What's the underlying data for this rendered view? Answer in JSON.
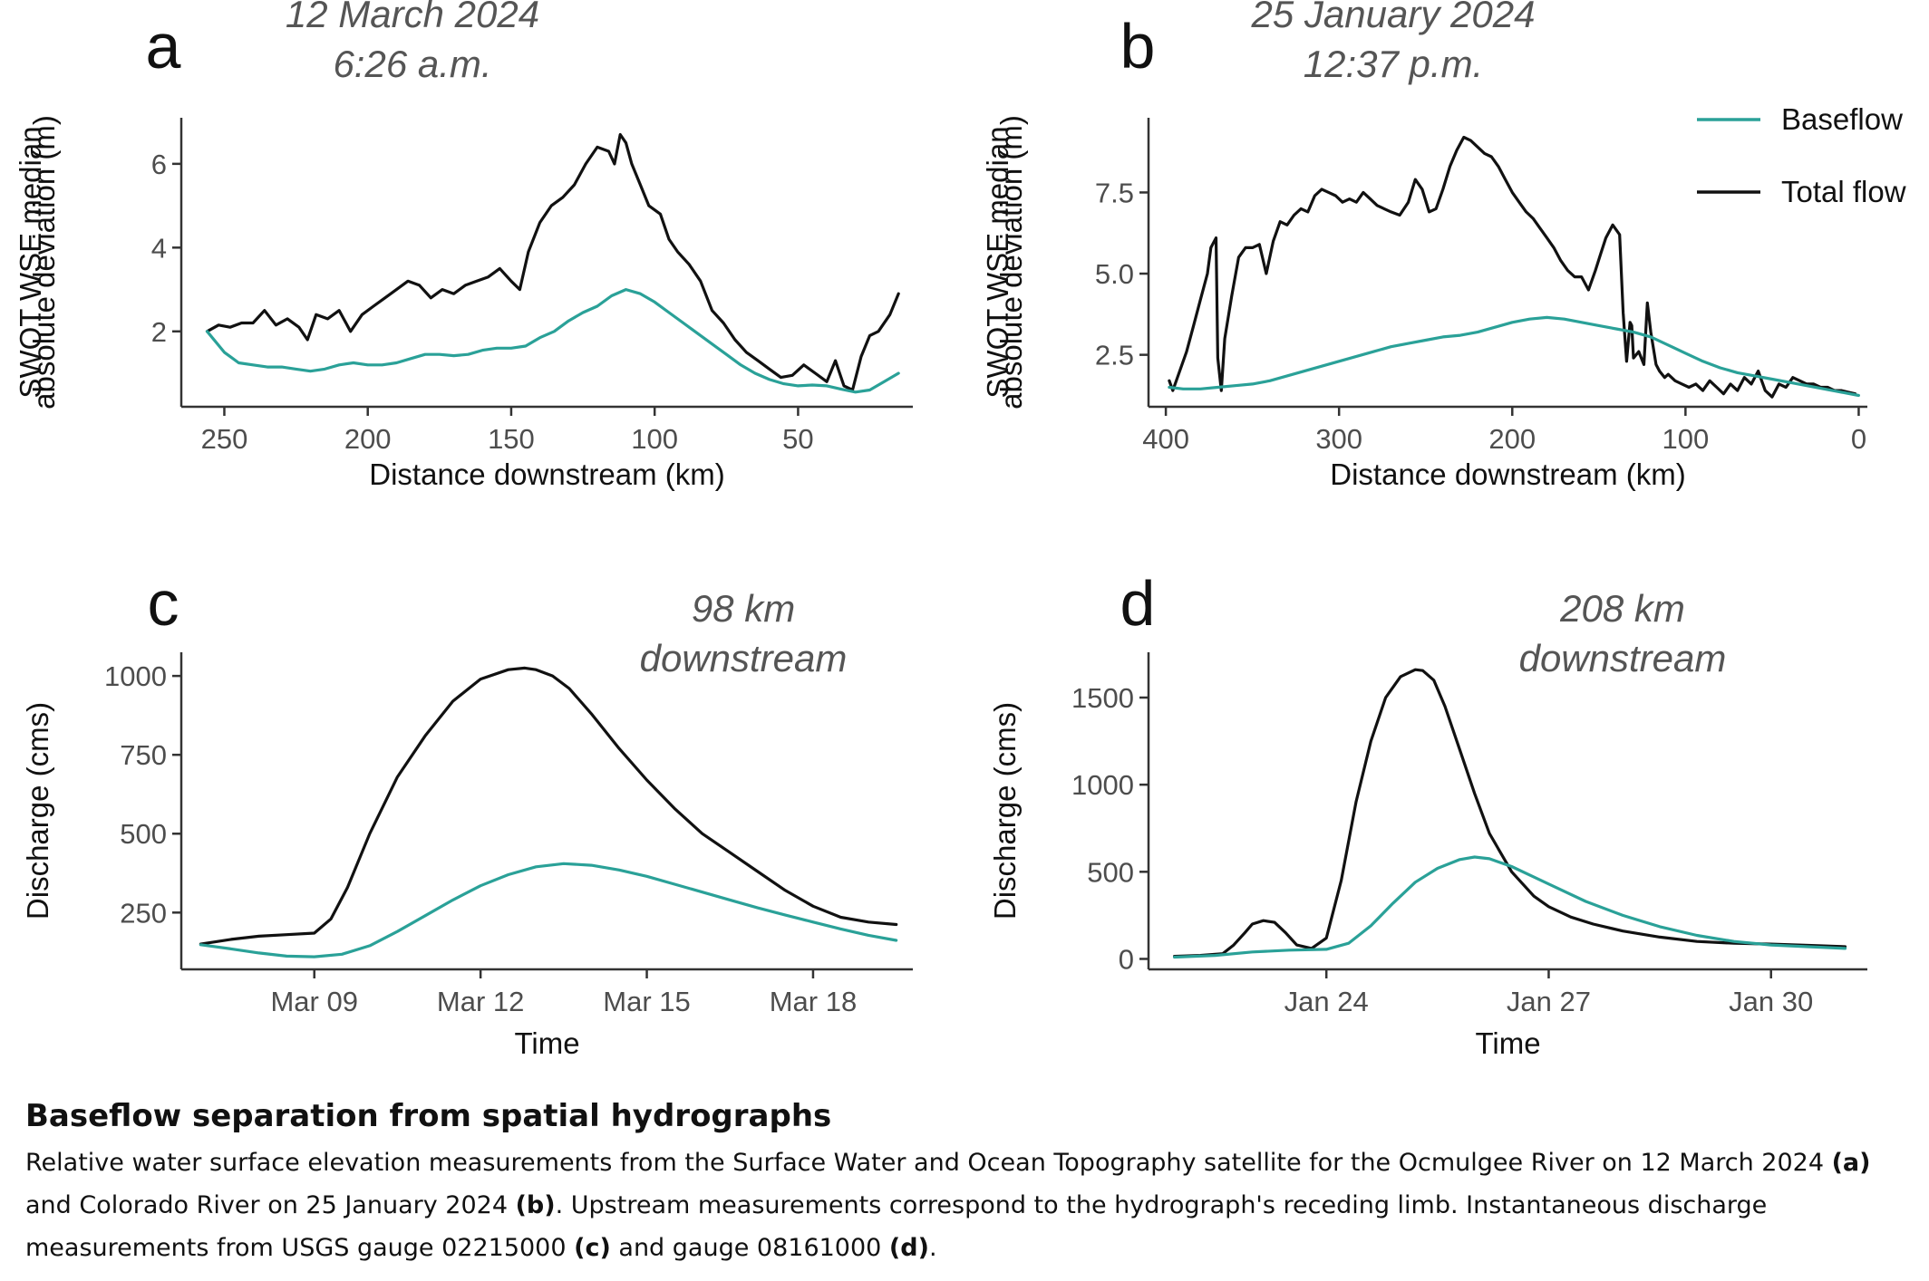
{
  "caption": {
    "title": "Baseflow separation from spatial hydrographs",
    "text_1": "Relative water surface elevation measurements from the Surface Water and Ocean Topography satellite for the Ocmulgee River on 12 March 2024 ",
    "ref_a": "(a)",
    "text_2": " and Colorado River on 25 January 2024 ",
    "ref_b": "(b)",
    "text_3": ". Upstream measurements correspond to the hydrograph's receding limb. Instantaneous discharge measurements from USGS gauge 02215000 ",
    "ref_c": "(c)",
    "text_4": " and gauge 08161000 ",
    "ref_d": "(d)",
    "text_5": "."
  },
  "colors": {
    "baseflow": "#2aa198",
    "total": "#111111",
    "axis": "#333333",
    "tick_text": "#4d4d4d",
    "annotation": "#555555"
  },
  "legend": {
    "items": [
      {
        "label": "Baseflow",
        "color": "#2aa198"
      },
      {
        "label": "Total flow",
        "color": "#111111"
      }
    ],
    "placement": "top-right of panel b"
  },
  "chart_data": [
    {
      "panel": "a",
      "type": "line",
      "annotation": [
        "12 March 2024",
        "6:26 a.m."
      ],
      "xlabel": "Distance downstream (km)",
      "ylabel": [
        "SWOT WSE median",
        "absolute deviation (m)"
      ],
      "x_reversed": true,
      "xlim": [
        265,
        10
      ],
      "ylim": [
        0.2,
        7.1
      ],
      "xticks": [
        250,
        200,
        150,
        100,
        50
      ],
      "xtick_labels": [
        "250",
        "200",
        "150",
        "100",
        "50"
      ],
      "yticks": [
        2,
        4,
        6
      ],
      "ytick_labels": [
        "2",
        "4",
        "6"
      ],
      "series": [
        {
          "name": "Total flow",
          "x": [
            256,
            252,
            248,
            244,
            240,
            236,
            232,
            228,
            224,
            221,
            218,
            214,
            210,
            206,
            202,
            198,
            194,
            190,
            186,
            182,
            178,
            174,
            170,
            166,
            162,
            158,
            154,
            150,
            147,
            144,
            140,
            136,
            132,
            128,
            124,
            120,
            116,
            114,
            112,
            110,
            108,
            105,
            102,
            98,
            95,
            92,
            88,
            84,
            80,
            76,
            72,
            68,
            64,
            60,
            56,
            52,
            48,
            44,
            40,
            37,
            34,
            31,
            28,
            25,
            22,
            18,
            15
          ],
          "y": [
            2.0,
            2.15,
            2.1,
            2.2,
            2.2,
            2.5,
            2.15,
            2.3,
            2.1,
            1.8,
            2.4,
            2.3,
            2.5,
            2.0,
            2.4,
            2.6,
            2.8,
            3.0,
            3.2,
            3.1,
            2.8,
            3.0,
            2.9,
            3.1,
            3.2,
            3.3,
            3.5,
            3.2,
            3.0,
            3.9,
            4.6,
            5.0,
            5.2,
            5.5,
            6.0,
            6.4,
            6.3,
            6.0,
            6.7,
            6.5,
            6.0,
            5.5,
            5.0,
            4.8,
            4.2,
            3.9,
            3.6,
            3.2,
            2.5,
            2.2,
            1.8,
            1.5,
            1.3,
            1.1,
            0.9,
            0.95,
            1.2,
            1.0,
            0.8,
            1.3,
            0.7,
            0.6,
            1.4,
            1.9,
            2.0,
            2.4,
            2.9
          ]
        },
        {
          "name": "Baseflow",
          "x": [
            256,
            250,
            245,
            240,
            235,
            230,
            225,
            220,
            215,
            210,
            205,
            200,
            195,
            190,
            185,
            180,
            175,
            170,
            165,
            160,
            155,
            150,
            145,
            140,
            135,
            130,
            125,
            120,
            115,
            110,
            105,
            100,
            95,
            90,
            85,
            80,
            75,
            70,
            65,
            60,
            55,
            50,
            45,
            40,
            35,
            30,
            25,
            20,
            15
          ],
          "y": [
            2.0,
            1.5,
            1.25,
            1.2,
            1.15,
            1.15,
            1.1,
            1.05,
            1.1,
            1.2,
            1.25,
            1.2,
            1.2,
            1.25,
            1.35,
            1.45,
            1.45,
            1.42,
            1.45,
            1.55,
            1.6,
            1.6,
            1.65,
            1.85,
            2.0,
            2.25,
            2.45,
            2.6,
            2.85,
            3.0,
            2.9,
            2.7,
            2.45,
            2.2,
            1.95,
            1.7,
            1.45,
            1.2,
            1.0,
            0.85,
            0.75,
            0.7,
            0.72,
            0.7,
            0.62,
            0.55,
            0.6,
            0.8,
            1.0
          ]
        }
      ]
    },
    {
      "panel": "b",
      "type": "line",
      "annotation": [
        "25 January 2024",
        "12:37 p.m."
      ],
      "xlabel": "Distance downstream (km)",
      "ylabel": [
        "SWOT WSE median",
        "absolute deviation (m)"
      ],
      "x_reversed": true,
      "xlim": [
        410,
        -5
      ],
      "ylim": [
        0.9,
        9.8
      ],
      "xticks": [
        400,
        300,
        200,
        100,
        0
      ],
      "xtick_labels": [
        "400",
        "300",
        "200",
        "100",
        "0"
      ],
      "yticks": [
        2.5,
        5.0,
        7.5
      ],
      "ytick_labels": [
        "2.5",
        "5.0",
        "7.5"
      ],
      "series": [
        {
          "name": "Total flow",
          "x": [
            398,
            396,
            392,
            388,
            384,
            380,
            376,
            374,
            371,
            370,
            368,
            366,
            362,
            358,
            354,
            350,
            346,
            342,
            338,
            334,
            330,
            326,
            322,
            318,
            314,
            310,
            306,
            302,
            298,
            294,
            290,
            286,
            282,
            278,
            274,
            270,
            265,
            260,
            256,
            252,
            248,
            244,
            240,
            236,
            232,
            228,
            224,
            220,
            216,
            212,
            208,
            204,
            200,
            196,
            192,
            188,
            184,
            180,
            176,
            172,
            168,
            164,
            160,
            156,
            152,
            149,
            146,
            142,
            138,
            136,
            134,
            132,
            131,
            130,
            127,
            124,
            122,
            120,
            117,
            115,
            112,
            110,
            106,
            102,
            98,
            94,
            90,
            86,
            82,
            78,
            74,
            70,
            66,
            62,
            58,
            54,
            50,
            46,
            42,
            38,
            34,
            30,
            26,
            22,
            18,
            14,
            10,
            6,
            2
          ],
          "y": [
            1.7,
            1.4,
            2.0,
            2.6,
            3.4,
            4.2,
            5.0,
            5.8,
            6.1,
            2.4,
            1.4,
            3.0,
            4.3,
            5.5,
            5.8,
            5.8,
            5.9,
            5.0,
            6.0,
            6.6,
            6.5,
            6.8,
            7.0,
            6.9,
            7.4,
            7.6,
            7.5,
            7.4,
            7.2,
            7.3,
            7.2,
            7.5,
            7.3,
            7.1,
            7.0,
            6.9,
            6.8,
            7.2,
            7.9,
            7.6,
            6.9,
            7.0,
            7.6,
            8.3,
            8.8,
            9.2,
            9.1,
            8.9,
            8.7,
            8.6,
            8.3,
            7.9,
            7.5,
            7.2,
            6.9,
            6.7,
            6.4,
            6.1,
            5.8,
            5.4,
            5.1,
            4.9,
            4.9,
            4.5,
            5.1,
            5.6,
            6.1,
            6.5,
            6.2,
            3.8,
            2.3,
            3.5,
            3.4,
            2.4,
            2.6,
            2.2,
            4.1,
            3.2,
            2.2,
            2.0,
            1.8,
            1.9,
            1.7,
            1.6,
            1.5,
            1.6,
            1.4,
            1.7,
            1.5,
            1.3,
            1.6,
            1.4,
            1.8,
            1.6,
            2.0,
            1.4,
            1.2,
            1.6,
            1.5,
            1.8,
            1.7,
            1.6,
            1.6,
            1.5,
            1.5,
            1.4,
            1.4,
            1.35,
            1.3
          ]
        },
        {
          "name": "Baseflow",
          "x": [
            398,
            390,
            380,
            370,
            360,
            350,
            340,
            330,
            320,
            310,
            300,
            290,
            280,
            270,
            260,
            250,
            240,
            230,
            220,
            210,
            200,
            190,
            180,
            170,
            160,
            150,
            140,
            130,
            120,
            110,
            100,
            90,
            80,
            70,
            60,
            50,
            40,
            30,
            20,
            10,
            0
          ],
          "y": [
            1.5,
            1.45,
            1.45,
            1.5,
            1.55,
            1.6,
            1.7,
            1.85,
            2.0,
            2.15,
            2.3,
            2.45,
            2.6,
            2.75,
            2.85,
            2.95,
            3.05,
            3.1,
            3.2,
            3.35,
            3.5,
            3.6,
            3.65,
            3.6,
            3.5,
            3.4,
            3.3,
            3.2,
            3.05,
            2.8,
            2.55,
            2.3,
            2.1,
            1.95,
            1.85,
            1.75,
            1.65,
            1.55,
            1.45,
            1.35,
            1.25
          ]
        }
      ]
    },
    {
      "panel": "c",
      "type": "line",
      "annotation": [
        "98 km",
        "downstream"
      ],
      "xlabel": "Time",
      "ylabel": [
        "Discharge (cms)"
      ],
      "x_unit": "days (Mar 9 = 9)",
      "xlim": [
        6.6,
        19.8
      ],
      "ylim": [
        70,
        1075
      ],
      "xticks": [
        9,
        12,
        15,
        18
      ],
      "xtick_labels": [
        "Mar 09",
        "Mar 12",
        "Mar 15",
        "Mar 18"
      ],
      "yticks": [
        250,
        500,
        750,
        1000
      ],
      "ytick_labels": [
        "250",
        "500",
        "750",
        "1000"
      ],
      "series": [
        {
          "name": "Total flow",
          "x": [
            6.95,
            7.5,
            8.0,
            8.5,
            9.0,
            9.3,
            9.6,
            10.0,
            10.5,
            11.0,
            11.5,
            12.0,
            12.5,
            12.8,
            13.0,
            13.3,
            13.6,
            14.0,
            14.5,
            15.0,
            15.5,
            16.0,
            16.5,
            17.0,
            17.5,
            18.0,
            18.5,
            19.0,
            19.5
          ],
          "y": [
            150,
            165,
            175,
            180,
            185,
            230,
            330,
            500,
            680,
            810,
            920,
            990,
            1020,
            1025,
            1020,
            1000,
            960,
            880,
            770,
            670,
            580,
            500,
            440,
            380,
            320,
            270,
            235,
            220,
            212
          ]
        },
        {
          "name": "Baseflow",
          "x": [
            6.95,
            7.5,
            8.0,
            8.5,
            9.0,
            9.5,
            10.0,
            10.5,
            11.0,
            11.5,
            12.0,
            12.5,
            13.0,
            13.5,
            14.0,
            14.5,
            15.0,
            15.5,
            16.0,
            16.5,
            17.0,
            17.5,
            18.0,
            18.5,
            19.0,
            19.5
          ],
          "y": [
            148,
            135,
            122,
            112,
            110,
            118,
            145,
            190,
            240,
            290,
            335,
            370,
            395,
            405,
            400,
            385,
            365,
            340,
            315,
            290,
            265,
            242,
            220,
            198,
            178,
            162
          ]
        }
      ]
    },
    {
      "panel": "d",
      "type": "line",
      "annotation": [
        "208 km",
        "downstream"
      ],
      "xlabel": "Time",
      "ylabel": [
        "Discharge (cms)"
      ],
      "x_unit": "days (Jan 24 = 24)",
      "xlim": [
        21.6,
        31.3
      ],
      "ylim": [
        -60,
        1760
      ],
      "xticks": [
        24,
        27,
        30
      ],
      "xtick_labels": [
        "Jan 24",
        "Jan 27",
        "Jan 30"
      ],
      "yticks": [
        0,
        500,
        1000,
        1500
      ],
      "ytick_labels": [
        "0",
        "500",
        "1000",
        "1500"
      ],
      "series": [
        {
          "name": "Total flow",
          "x": [
            21.95,
            22.3,
            22.6,
            22.75,
            22.9,
            23.0,
            23.15,
            23.3,
            23.45,
            23.6,
            23.8,
            24.0,
            24.2,
            24.4,
            24.6,
            24.8,
            25.0,
            25.2,
            25.3,
            25.45,
            25.6,
            25.8,
            26.0,
            26.2,
            26.5,
            26.8,
            27.0,
            27.3,
            27.6,
            28.0,
            28.5,
            29.0,
            29.5,
            30.0,
            30.5,
            31.0
          ],
          "y": [
            15,
            20,
            30,
            80,
            150,
            200,
            220,
            210,
            150,
            80,
            60,
            120,
            450,
            900,
            1250,
            1500,
            1620,
            1660,
            1655,
            1600,
            1450,
            1200,
            950,
            720,
            500,
            360,
            300,
            240,
            200,
            160,
            125,
            100,
            90,
            85,
            78,
            70
          ]
        },
        {
          "name": "Baseflow",
          "x": [
            21.95,
            22.5,
            23.0,
            23.5,
            24.0,
            24.3,
            24.6,
            24.9,
            25.2,
            25.5,
            25.8,
            26.0,
            26.2,
            26.5,
            26.8,
            27.0,
            27.5,
            28.0,
            28.5,
            29.0,
            29.5,
            30.0,
            30.5,
            31.0
          ],
          "y": [
            10,
            20,
            40,
            50,
            55,
            90,
            190,
            320,
            440,
            520,
            570,
            585,
            575,
            530,
            470,
            430,
            330,
            250,
            185,
            135,
            100,
            80,
            70,
            60
          ]
        }
      ]
    }
  ]
}
